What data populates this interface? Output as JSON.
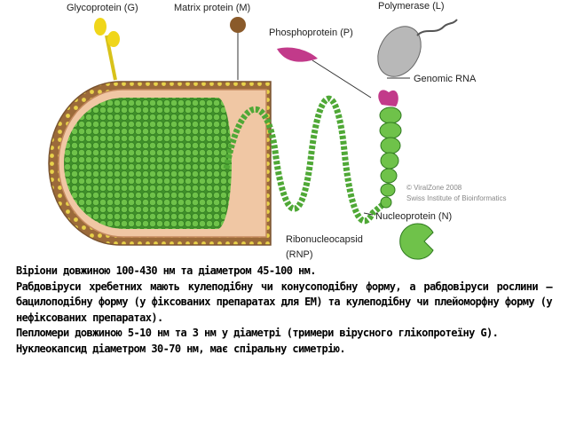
{
  "diagram": {
    "labels": {
      "glycoprotein": "Glycoprotein (G)",
      "matrix": "Matrix protein (M)",
      "polymerase": "Polymerase (L)",
      "phosphoprotein": "Phosphoprotein (P)",
      "genomic_rna": "Genomic RNA",
      "copyright": "© ViralZone 2008",
      "institute": "Swiss Institute of Bioinformatics",
      "nucleoprotein": "Nucleoprotein (N)",
      "rnp": "Ribonucleocapsid",
      "rnp_abbr": "(RNP)"
    }
  },
  "text": {
    "paragraphs": [
      "Віріони довжиною 100-430 нм та діаметром 45-100 нм.",
      "Рабдовіруси хребетних мають кулеподібну чи конусоподібну форму, а рабдовіруси рослини – бацилоподібну форму (у фіксованих препаратах для ЕМ) та кулеподібну чи плейоморфну форму (у нефіксованих препаратах).",
      "Пепломери довжиною 5-10 нм та 3 нм у діаметрі (тримери вірусного глікопротеїну G).",
      "Нуклеокапсид діаметром 30-70 нм, має спіральну симетрію."
    ]
  }
}
